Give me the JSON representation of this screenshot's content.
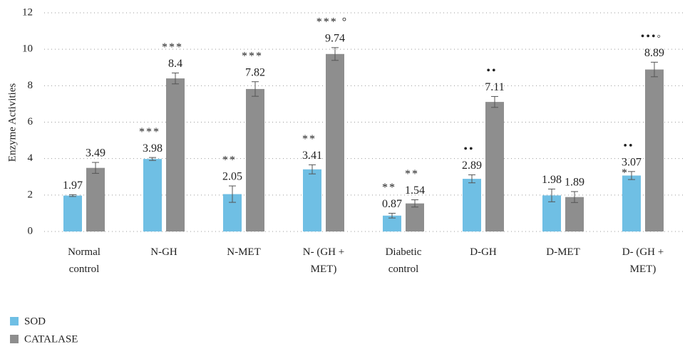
{
  "chart_data": {
    "type": "bar",
    "y_label": "Enzyme Activities",
    "categories": [
      "Normal\ncontrol",
      "N-GH",
      "N-MET",
      "N- (GH +\nMET)",
      "Diabetic\ncontrol",
      "D-GH",
      "D-MET",
      "D- (GH +\nMET)"
    ],
    "series": [
      {
        "name": "SOD",
        "color": "#6fbfe4",
        "values": [
          1.97,
          3.98,
          2.05,
          3.41,
          0.87,
          2.89,
          1.98,
          3.07
        ],
        "errors": [
          0.05,
          0.08,
          0.45,
          0.25,
          0.13,
          0.22,
          0.35,
          0.22
        ],
        "significance": [
          null,
          "***",
          "**",
          "**",
          "**",
          "••",
          null,
          "••"
        ],
        "significance_below_label": [
          null,
          null,
          null,
          null,
          null,
          null,
          null,
          "*"
        ]
      },
      {
        "name": "CATALASE",
        "color": "#8e8e8e",
        "values": [
          3.49,
          8.4,
          7.82,
          9.74,
          1.54,
          7.11,
          1.89,
          8.89
        ],
        "errors": [
          0.3,
          0.3,
          0.4,
          0.35,
          0.2,
          0.3,
          0.3,
          0.4
        ],
        "significance": [
          null,
          "***",
          "***",
          "*** °",
          "**",
          "••",
          null,
          "•••◦"
        ],
        "significance_below_label": [
          null,
          null,
          null,
          null,
          null,
          null,
          null,
          null
        ]
      }
    ],
    "ylim": [
      0,
      12
    ],
    "yticks": [
      0,
      2,
      4,
      6,
      8,
      10,
      12
    ],
    "grid": true,
    "legend": "bottom-left"
  }
}
